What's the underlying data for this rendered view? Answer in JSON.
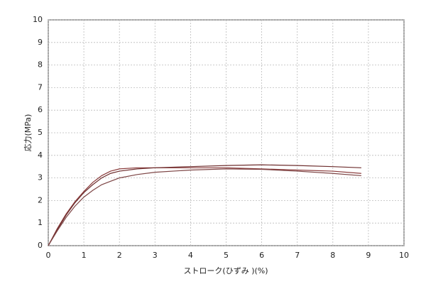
{
  "chart_data": {
    "type": "line",
    "xlabel": "ストローク(ひずみ )(%)",
    "ylabel": "応力(MPa)",
    "x": [
      0,
      0.25,
      0.5,
      0.75,
      1,
      1.25,
      1.5,
      1.75,
      2,
      2.5,
      3,
      4,
      5,
      6,
      7,
      8,
      8.8
    ],
    "series": [
      {
        "color": "#8a3b3b",
        "values": [
          0,
          0.75,
          1.4,
          1.95,
          2.4,
          2.8,
          3.1,
          3.3,
          3.4,
          3.45,
          3.45,
          3.45,
          3.45,
          3.4,
          3.35,
          3.3,
          3.2
        ]
      },
      {
        "color": "#6e2e2e",
        "values": [
          0,
          0.7,
          1.35,
          1.9,
          2.35,
          2.7,
          3.0,
          3.2,
          3.3,
          3.4,
          3.45,
          3.5,
          3.55,
          3.58,
          3.55,
          3.5,
          3.45
        ]
      },
      {
        "color": "#7d4545",
        "values": [
          0,
          0.65,
          1.25,
          1.75,
          2.15,
          2.45,
          2.7,
          2.85,
          3.0,
          3.15,
          3.25,
          3.35,
          3.4,
          3.38,
          3.3,
          3.2,
          3.1
        ]
      }
    ],
    "xlim": [
      0,
      10
    ],
    "ylim": [
      0,
      10
    ],
    "xticks": [
      0,
      1,
      2,
      3,
      4,
      5,
      6,
      7,
      8,
      9,
      10
    ],
    "yticks": [
      0,
      1,
      2,
      3,
      4,
      5,
      6,
      7,
      8,
      9,
      10
    ],
    "grid": true
  }
}
